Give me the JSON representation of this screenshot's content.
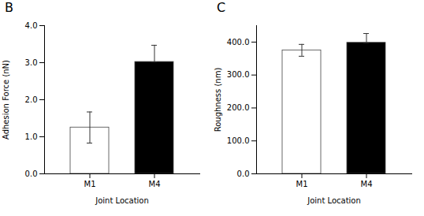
{
  "chart_data": [
    {
      "type": "bar",
      "title": "B",
      "categories": [
        "M1",
        "M4"
      ],
      "values": [
        1.25,
        3.02
      ],
      "error_upper": [
        0.42,
        0.45
      ],
      "error_lower": [
        0.42,
        0.0
      ],
      "colors": [
        "white",
        "black"
      ],
      "xlabel": "Joint Location",
      "ylabel": "Adhesion Force (nN)",
      "ylim": [
        0,
        4.0
      ],
      "yticks": [
        {
          "value": 0.0,
          "label": "0.0"
        },
        {
          "value": 1.0,
          "label": "1.0"
        },
        {
          "value": 2.0,
          "label": "2.0"
        },
        {
          "value": 3.0,
          "label": "3.0"
        },
        {
          "value": 4.0,
          "label": "4.0"
        }
      ]
    },
    {
      "type": "bar",
      "title": "C",
      "categories": [
        "M1",
        "M4"
      ],
      "values": [
        375.0,
        398.0
      ],
      "error_upper": [
        18.0,
        28.0
      ],
      "error_lower": [
        18.0,
        0.0
      ],
      "colors": [
        "white",
        "black"
      ],
      "xlabel": "Joint Location",
      "ylabel": "Roughness (nm)",
      "ylim": [
        0,
        450.0
      ],
      "yticks": [
        {
          "value": 0.0,
          "label": "0.0"
        },
        {
          "value": 100.0,
          "label": "100.0"
        },
        {
          "value": 200.0,
          "label": "200.0"
        },
        {
          "value": 300.0,
          "label": "300.0"
        },
        {
          "value": 400.0,
          "label": "400.0"
        }
      ]
    }
  ]
}
